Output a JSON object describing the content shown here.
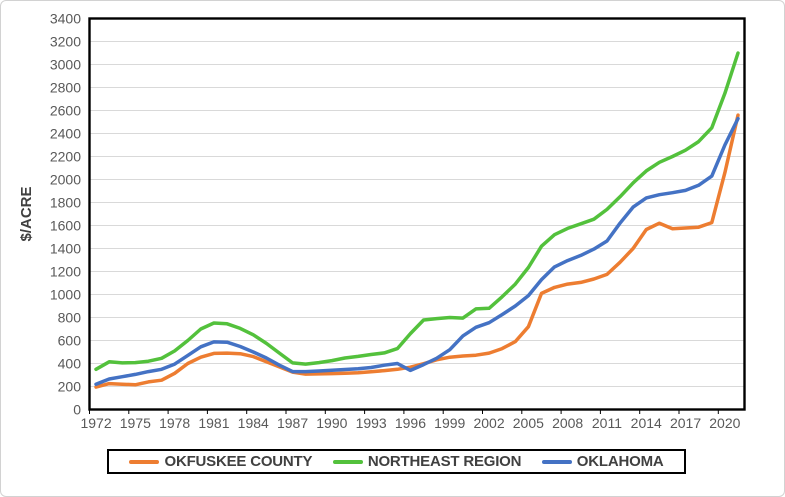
{
  "chart_data": {
    "type": "line",
    "title": "",
    "xlabel": "",
    "ylabel": "$/ACRE",
    "ylim": [
      0,
      3400
    ],
    "y_tick_step": 200,
    "y_ticks": [
      0,
      200,
      400,
      600,
      800,
      1000,
      1200,
      1400,
      1600,
      1800,
      2000,
      2200,
      2400,
      2600,
      2800,
      3000,
      3200,
      3400
    ],
    "x_tick_labels": [
      "1972",
      "1975",
      "1978",
      "1981",
      "1984",
      "1987",
      "1990",
      "1993",
      "1996",
      "1999",
      "2002",
      "2005",
      "2008",
      "2011",
      "2014",
      "2017",
      "2020"
    ],
    "x_tick_interval_years": 3,
    "grid": true,
    "legend_position": "bottom",
    "years": [
      1972,
      1973,
      1974,
      1975,
      1976,
      1977,
      1978,
      1979,
      1980,
      1981,
      1982,
      1983,
      1984,
      1985,
      1986,
      1987,
      1988,
      1989,
      1990,
      1991,
      1992,
      1993,
      1994,
      1995,
      1996,
      1997,
      1998,
      1999,
      2000,
      2001,
      2002,
      2003,
      2004,
      2005,
      2006,
      2007,
      2008,
      2009,
      2010,
      2011,
      2012,
      2013,
      2014,
      2015,
      2016,
      2017,
      2018,
      2019,
      2020,
      2021
    ],
    "series": [
      {
        "name": "OKFUSKEE COUNTY",
        "color": "#ED7D31",
        "values": [
          195,
          225,
          220,
          215,
          240,
          255,
          315,
          400,
          455,
          488,
          490,
          485,
          460,
          415,
          370,
          325,
          308,
          310,
          312,
          316,
          320,
          328,
          338,
          350,
          368,
          398,
          432,
          455,
          465,
          472,
          490,
          530,
          590,
          720,
          1010,
          1062,
          1090,
          1105,
          1135,
          1175,
          1280,
          1400,
          1565,
          1620,
          1572,
          1578,
          1585,
          1625,
          2060,
          2560
        ]
      },
      {
        "name": "NORTHEAST REGION",
        "color": "#53C13C",
        "values": [
          350,
          415,
          405,
          408,
          420,
          445,
          510,
          600,
          700,
          752,
          745,
          705,
          650,
          575,
          490,
          405,
          395,
          408,
          425,
          448,
          462,
          478,
          492,
          530,
          660,
          778,
          790,
          800,
          795,
          875,
          880,
          980,
          1090,
          1235,
          1420,
          1520,
          1575,
          1615,
          1655,
          1740,
          1850,
          1970,
          2075,
          2150,
          2200,
          2255,
          2330,
          2450,
          2750,
          3100
        ]
      },
      {
        "name": "OKLAHOMA",
        "color": "#4472C4",
        "values": [
          220,
          265,
          285,
          305,
          330,
          350,
          395,
          470,
          545,
          588,
          585,
          548,
          500,
          448,
          385,
          330,
          330,
          335,
          342,
          348,
          355,
          365,
          385,
          400,
          340,
          390,
          445,
          520,
          640,
          715,
          755,
          825,
          900,
          990,
          1130,
          1240,
          1295,
          1340,
          1395,
          1465,
          1620,
          1760,
          1840,
          1868,
          1885,
          1905,
          1950,
          2030,
          2300,
          2530
        ]
      }
    ]
  },
  "style": {
    "axis_color": "#000000",
    "grid_color": "#D9D9D9",
    "tick_label_color": "#595959",
    "axis_title_color": "#404040",
    "legend_text_color": "#404040",
    "plot_bg": "#FFFFFF"
  }
}
